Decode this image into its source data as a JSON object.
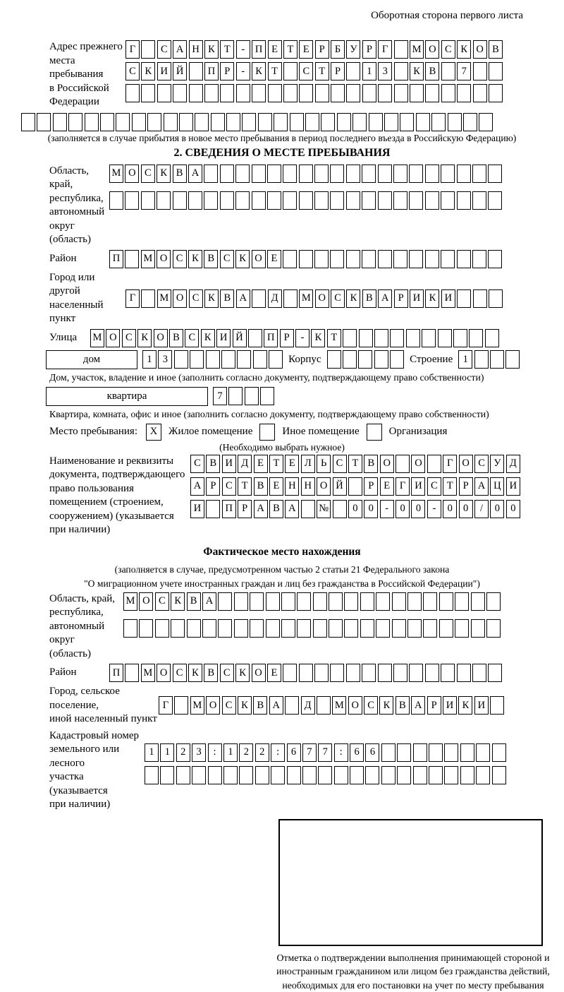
{
  "page": {
    "header_right": "Оборотная сторона первого листа"
  },
  "prev_address": {
    "label": "Адрес прежнего\nместа пребывания\nв Российской\nФедерации",
    "rows": [
      {
        "chars": "Г САНКТ-ПЕТЕРБУРГ МОСКОВ",
        "len": 24
      },
      {
        "chars": "СКИЙ ПР-КТ СТР 13 КВ 7",
        "len": 24
      },
      {
        "chars": "",
        "len": 24
      }
    ],
    "full_row": {
      "chars": "",
      "len": 30
    },
    "note": "(заполняется в случае прибытия в новое место пребывания в период последнего въезда в Российскую Федерацию)"
  },
  "section2": {
    "title": "2. СВЕДЕНИЯ О МЕСТЕ ПРЕБЫВАНИЯ",
    "oblast": {
      "label": "Область, край,\nреспублика,\nавтономный\nокруг (область)",
      "rows": [
        {
          "chars": "МОСКВА",
          "len": 25
        },
        {
          "chars": "",
          "len": 25
        }
      ]
    },
    "rayon": {
      "label": "Район",
      "row": {
        "chars": "П МОСКВСКОЕ",
        "len": 25
      }
    },
    "gorod": {
      "label": "Город или другой\nнаселенный пункт",
      "row": {
        "chars": "Г МОСКВА Д МОСКВАРИКИ",
        "len": 24
      }
    },
    "ulitsa": {
      "label": "Улица",
      "row": {
        "chars": "МОСКОВСКИЙ ПР-КТ",
        "len": 26
      }
    },
    "dom": {
      "box_label": "дом",
      "cells1": {
        "chars": "13",
        "len": 9
      },
      "korpus_label": "Корпус",
      "cells2": {
        "chars": "",
        "len": 5
      },
      "stroenie_label": "Строение",
      "cells3": {
        "chars": "1",
        "len": 4
      },
      "note": "Дом, участок, владение и иное (заполнить согласно документу, подтверждающему право собственности)"
    },
    "kvartira": {
      "box_label": "квартира",
      "cells": {
        "chars": "7",
        "len": 4
      },
      "note": "Квартира, комната, офис и иное (заполнить согласно документу, подтверждающему право собственности)"
    },
    "mesto": {
      "label": "Место пребывания:",
      "options": [
        {
          "label": "Жилое помещение",
          "checked": "X"
        },
        {
          "label": "Иное помещение",
          "checked": ""
        },
        {
          "label": "Организация",
          "checked": ""
        }
      ],
      "note": "(Необходимо выбрать нужное)"
    },
    "document": {
      "label": "Наименование и реквизиты\nдокумента, подтверждающего\nправо пользования\nпомещением (строением,\nсооружением) (указывается\nпри наличии)",
      "rows": [
        {
          "chars": "СВИДЕТЕЛЬСТВО О ГОСУД",
          "len": 21
        },
        {
          "chars": "АРСТВЕННОЙ РЕГИСТРАЦИ",
          "len": 21
        },
        {
          "chars": "И ПРАВА № 00-00-00/000",
          "len": 21
        }
      ]
    }
  },
  "fact_location": {
    "title": "Фактическое место нахождения",
    "note1": "(заполняется в случае, предусмотренном частью 2 статьи 21 Федерального закона",
    "note2": "\"О миграционном учете иностранных граждан и лиц без гражданства в Российской Федерации\")",
    "oblast": {
      "label": "Область, край,\nреспублика,\nавтономный округ\n(область)",
      "rows": [
        {
          "chars": "МОСКВА",
          "len": 24
        },
        {
          "chars": "",
          "len": 24
        }
      ]
    },
    "rayon": {
      "label": "Район",
      "row": {
        "chars": "П МОСКВСКОЕ",
        "len": 25
      }
    },
    "gorod": {
      "label": "Город, сельское поселение,\nиной населенный пункт",
      "row": {
        "chars": "Г МОСКВА Д МОСКВАРИКИ",
        "len": 22
      }
    },
    "kadastr": {
      "label": "Кадастровый номер\nземельного или лесного\nучастка (указывается\nпри наличии)",
      "rows": [
        {
          "chars": "1123:122:677:66",
          "len": 23
        },
        {
          "chars": "",
          "len": 23
        }
      ]
    },
    "stamp_caption": "Отметка о подтверждении выполнения принимающей стороной и иностранным гражданином или лицом без гражданства действий, необходимых для его постановки на учет по месту пребывания"
  }
}
